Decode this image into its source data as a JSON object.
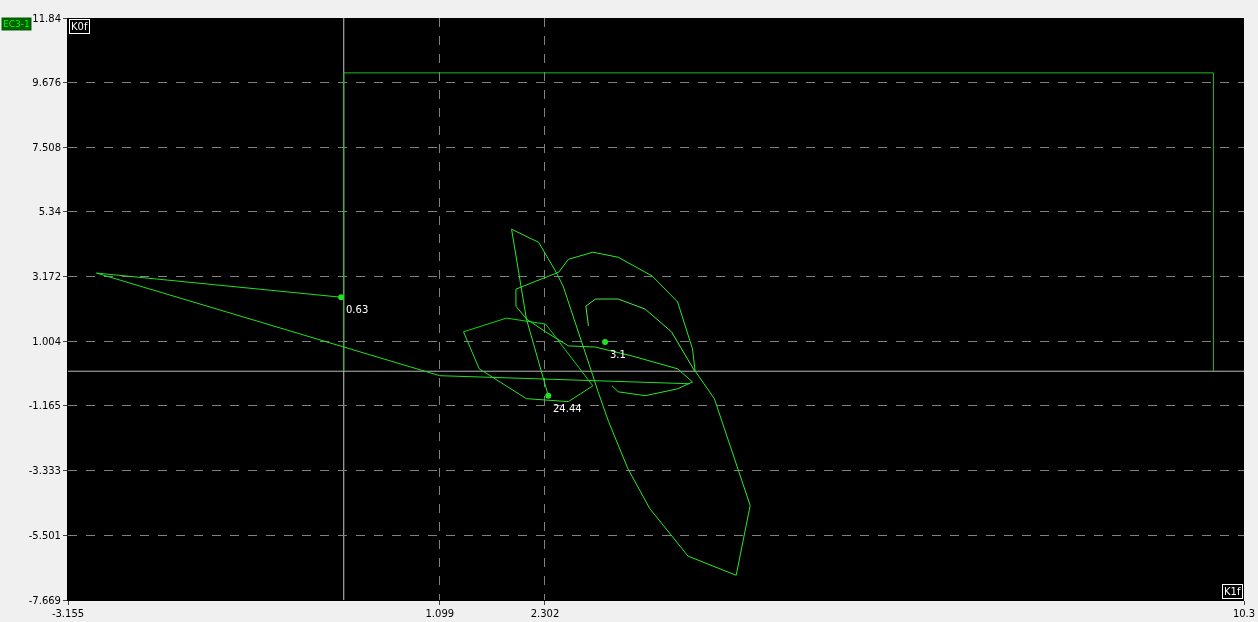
{
  "chart_data": {
    "type": "line",
    "xlim": [
      -3.155,
      10.3
    ],
    "xticks": [
      -3.155,
      1.099,
      2.302,
      10.3
    ],
    "ylim": [
      -7.669,
      11.84
    ],
    "yticks": [
      -7.669,
      -5.501,
      -3.333,
      -1.165,
      1.004,
      3.172,
      5.34,
      7.508,
      9.676,
      11.84
    ],
    "grid": true,
    "line_style": "solid",
    "series": [
      {
        "color": "#1fbf1f",
        "x": [
          0,
          0,
          9.95,
          9.95
        ],
        "values": [
          0,
          10,
          10,
          0
        ]
      },
      {
        "color": "#22e022",
        "x": [
          -0.03,
          -2.83,
          1.099,
          3.96
        ],
        "values": [
          2.48,
          3.29,
          -0.15,
          -0.42
        ]
      },
      {
        "color": "#10d810",
        "x": [
          1.37,
          1.86,
          2.31,
          2.85
        ],
        "values": [
          1.32,
          1.78,
          1.58,
          -0.49
        ]
      },
      {
        "color": "#2ee02e",
        "x": [
          2.85,
          2.57,
          2.09,
          1.55,
          1.37
        ],
        "values": [
          -0.49,
          -1.02,
          -0.92,
          0.08,
          1.32
        ]
      },
      {
        "color": "#26ea26",
        "x": [
          2.34,
          2.09,
          1.92,
          2.23,
          2.43,
          2.51,
          2.85,
          2.91,
          3.03,
          3.25,
          3.5,
          3.94,
          4.49,
          4.65,
          4.24,
          4.02,
          3.99,
          3.82,
          3.53,
          3.14,
          2.85,
          2.57,
          2.46,
          2.2,
          1.97,
          1.97,
          2.09,
          2.31,
          2.57,
          2.88,
          3.3,
          3.82,
          3.99,
          3.82,
          3.45,
          3.14,
          3.07
        ],
        "values": [
          -0.82,
          1.75,
          4.76,
          4.32,
          3.32,
          2.85,
          -0.15,
          -0.69,
          -1.69,
          -3.26,
          -4.6,
          -6.2,
          -6.84,
          -4.5,
          -0.92,
          0.01,
          0.75,
          2.32,
          3.19,
          3.82,
          3.99,
          3.75,
          3.32,
          3.02,
          2.75,
          2.18,
          1.75,
          1.32,
          0.85,
          0.81,
          0.51,
          0.08,
          -0.36,
          -0.59,
          -0.82,
          -0.69,
          -0.49
        ]
      },
      {
        "color": "#40f040",
        "x": [
          2.8,
          2.77,
          2.88,
          3.14,
          3.45,
          3.75,
          4.02
        ],
        "values": [
          1.52,
          2.18,
          2.42,
          2.42,
          2.08,
          1.32,
          -0.02
        ]
      },
      {
        "type": "scatter",
        "color": "#22e022",
        "x": [
          -0.03,
          2.34,
          2.99
        ],
        "values": [
          2.48,
          -0.82,
          0.98
        ]
      }
    ],
    "ref_lines": [
      {
        "axis": "x",
        "value": 0,
        "color": "#c8c8c8"
      },
      {
        "axis": "y",
        "value": 0,
        "color": "#b8b8b8"
      }
    ],
    "annotations": [
      "EC3-1",
      "K0f",
      "K1f",
      {
        "text": "0.63",
        "x": -0.03,
        "y": 2.48
      },
      {
        "text": "24.44",
        "x": 2.34,
        "y": -0.82
      },
      {
        "text": "3.1",
        "x": 2.99,
        "y": 0.98
      }
    ]
  }
}
